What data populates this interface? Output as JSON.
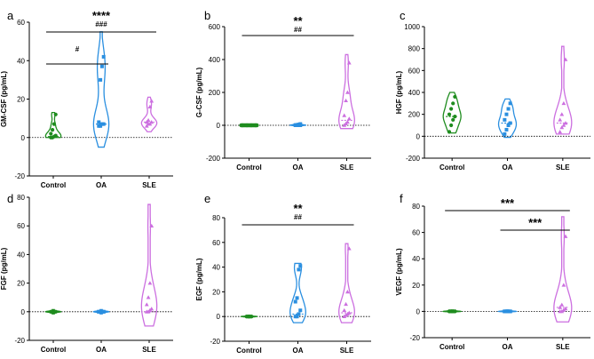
{
  "colors": {
    "Control": "#1e8c1e",
    "OA": "#2a8fe0",
    "SLE": "#cc6fe0"
  },
  "chart_data": [
    {
      "panel": "a",
      "type": "violin",
      "ylabel": "GM-CSF (pg/mL)",
      "ylim": [
        -20,
        60
      ],
      "yticks": [
        -20,
        0,
        20,
        40,
        60
      ],
      "categories": [
        "Control",
        "OA",
        "SLE"
      ],
      "series": [
        {
          "group": "Control",
          "range": [
            0,
            13
          ],
          "median": 0.5,
          "values": [
            0,
            0,
            0.5,
            1,
            2,
            4,
            7,
            12
          ]
        },
        {
          "group": "OA",
          "range": [
            -5,
            55
          ],
          "median": 7,
          "values": [
            6,
            6,
            7,
            7,
            8,
            30,
            37,
            42
          ]
        },
        {
          "group": "SLE",
          "range": [
            3,
            21
          ],
          "median": 8,
          "values": [
            6,
            7,
            7,
            8,
            8,
            9,
            16,
            19
          ]
        }
      ],
      "significance": [
        {
          "pair": [
            "Control",
            "SLE"
          ],
          "labels": [
            "****",
            "###"
          ]
        },
        {
          "pair": [
            "Control",
            "OA"
          ],
          "labels": [
            "#"
          ]
        }
      ]
    },
    {
      "panel": "b",
      "type": "violin",
      "ylabel": "G-CSF (pg/mL)",
      "ylim": [
        -200,
        600
      ],
      "yticks": [
        -200,
        0,
        200,
        400,
        600
      ],
      "categories": [
        "Control",
        "OA",
        "SLE"
      ],
      "series": [
        {
          "group": "Control",
          "range": [
            0,
            0
          ],
          "median": 0,
          "values": [
            0,
            0,
            0,
            0,
            0,
            0,
            0,
            0
          ]
        },
        {
          "group": "OA",
          "range": [
            -5,
            10
          ],
          "median": 0,
          "values": [
            0,
            0,
            0,
            0,
            2,
            3,
            5,
            8
          ]
        },
        {
          "group": "SLE",
          "range": [
            -20,
            430
          ],
          "median": 30,
          "values": [
            0,
            10,
            20,
            40,
            60,
            150,
            200,
            380
          ]
        }
      ],
      "significance": [
        {
          "pair": [
            "Control",
            "SLE"
          ],
          "labels": [
            "**",
            "##"
          ]
        }
      ]
    },
    {
      "panel": "c",
      "type": "violin",
      "ylabel": "HGF (pg/mL)",
      "ylim": [
        -200,
        1000
      ],
      "yticks": [
        -200,
        0,
        200,
        400,
        600,
        800,
        1000
      ],
      "categories": [
        "Control",
        "OA",
        "SLE"
      ],
      "series": [
        {
          "group": "Control",
          "range": [
            30,
            400
          ],
          "median": 180,
          "values": [
            40,
            100,
            150,
            180,
            200,
            250,
            300,
            360
          ]
        },
        {
          "group": "OA",
          "range": [
            -10,
            340
          ],
          "median": 120,
          "values": [
            20,
            60,
            100,
            120,
            150,
            200,
            250,
            300
          ]
        },
        {
          "group": "SLE",
          "range": [
            20,
            820
          ],
          "median": 120,
          "values": [
            40,
            80,
            100,
            120,
            150,
            200,
            300,
            700
          ]
        }
      ],
      "significance": []
    },
    {
      "panel": "d",
      "type": "violin",
      "ylabel": "FGF (pg/mL)",
      "ylim": [
        -20,
        80
      ],
      "yticks": [
        -20,
        0,
        20,
        40,
        60,
        80
      ],
      "categories": [
        "Control",
        "OA",
        "SLE"
      ],
      "series": [
        {
          "group": "Control",
          "range": [
            -1.5,
            1.5
          ],
          "median": 0,
          "values": [
            0,
            0,
            0,
            0,
            0,
            0,
            0,
            0
          ]
        },
        {
          "group": "OA",
          "range": [
            -1.5,
            1.5
          ],
          "median": 0,
          "values": [
            0,
            0,
            0,
            0,
            0,
            0,
            0,
            0
          ]
        },
        {
          "group": "SLE",
          "range": [
            -10,
            75
          ],
          "median": 0,
          "values": [
            0,
            0,
            1,
            2,
            5,
            10,
            20,
            60
          ]
        }
      ],
      "significance": []
    },
    {
      "panel": "e",
      "type": "violin",
      "ylabel": "EGF (pg/mL)",
      "ylim": [
        -20,
        80
      ],
      "yticks": [
        -20,
        0,
        20,
        40,
        60,
        80
      ],
      "categories": [
        "Control",
        "OA",
        "SLE"
      ],
      "series": [
        {
          "group": "Control",
          "range": [
            -1,
            1
          ],
          "median": 0,
          "values": [
            0,
            0,
            0,
            0,
            0,
            0,
            0,
            0
          ]
        },
        {
          "group": "OA",
          "range": [
            -5,
            43
          ],
          "median": 2,
          "values": [
            0,
            0,
            2,
            5,
            12,
            15,
            38,
            41
          ]
        },
        {
          "group": "SLE",
          "range": [
            -5,
            59
          ],
          "median": 3,
          "values": [
            0,
            1,
            2,
            3,
            5,
            10,
            20,
            55
          ]
        }
      ],
      "significance": [
        {
          "pair": [
            "Control",
            "SLE"
          ],
          "labels": [
            "**",
            "##"
          ]
        }
      ]
    },
    {
      "panel": "f",
      "type": "violin",
      "ylabel": "VEGF (pg/mL)",
      "ylim": [
        -20,
        80
      ],
      "yticks": [
        -20,
        0,
        20,
        40,
        60,
        80
      ],
      "categories": [
        "Control",
        "OA",
        "SLE"
      ],
      "series": [
        {
          "group": "Control",
          "range": [
            -1,
            1
          ],
          "median": 0,
          "values": [
            0,
            0,
            0,
            0,
            0,
            0,
            0,
            0
          ]
        },
        {
          "group": "OA",
          "range": [
            -1,
            1
          ],
          "median": 0,
          "values": [
            0,
            0,
            0,
            0,
            0,
            0,
            0,
            0
          ]
        },
        {
          "group": "SLE",
          "range": [
            -8,
            72
          ],
          "median": 3,
          "values": [
            0,
            0,
            1,
            2,
            3,
            5,
            20,
            57
          ]
        }
      ],
      "significance": [
        {
          "pair": [
            "Control",
            "SLE"
          ],
          "labels": [
            "***"
          ]
        },
        {
          "pair": [
            "OA",
            "SLE"
          ],
          "labels": [
            "***"
          ]
        }
      ]
    }
  ]
}
